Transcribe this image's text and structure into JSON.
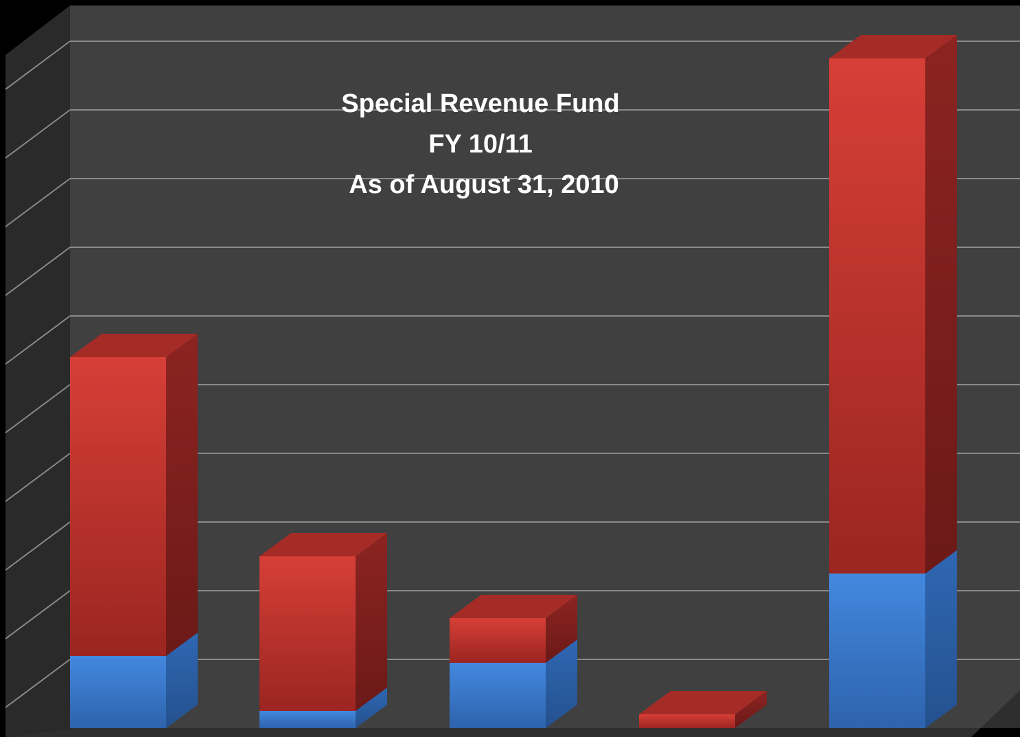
{
  "chart_data": {
    "type": "bar",
    "stacked": true,
    "three_d": true,
    "title_lines": [
      "Special Revenue Fund",
      "FY 10/11",
      "As of August 31, 2010"
    ],
    "categories": [
      "",
      "",
      "",
      "",
      ""
    ],
    "series": [
      {
        "color": "#3d7fd4",
        "values": [
          1.05,
          0.25,
          0.95,
          0.0,
          2.25
        ]
      },
      {
        "color": "#c8382f",
        "values": [
          4.35,
          2.25,
          0.65,
          0.2,
          7.5
        ]
      }
    ],
    "ylim": [
      0,
      10.5
    ],
    "grid": true,
    "legend": "none",
    "colors": {
      "background": "#000000",
      "back_wall": "#404040",
      "side_wall": "#2a2a2a",
      "floor": "#2e2e2e",
      "gridline": "#8a8a8a",
      "title": "#ffffff"
    }
  }
}
